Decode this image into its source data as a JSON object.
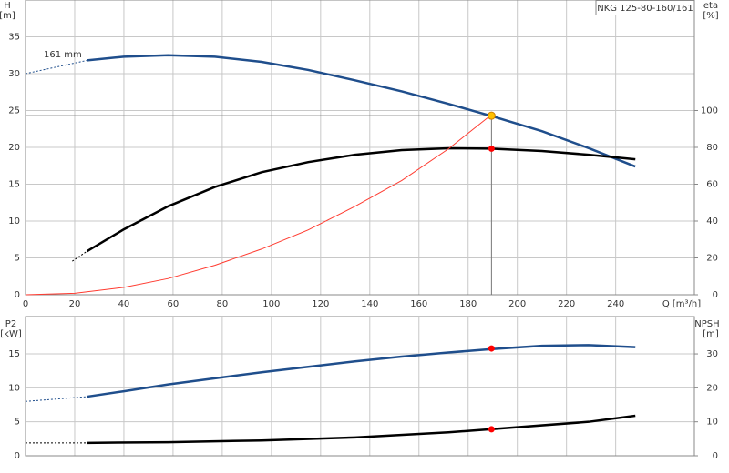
{
  "chart_data": [
    {
      "type": "line",
      "title": "NKG 125-80-160/161",
      "annotation": "161 mm",
      "y_label": "H",
      "y_unit": "[m]",
      "y2_label": "eta",
      "y2_unit": "[%]",
      "x_label": "Q [m³/h]",
      "xlim": [
        0,
        272
      ],
      "xticks": [
        0,
        20,
        40,
        60,
        80,
        100,
        120,
        140,
        160,
        180,
        200,
        220,
        240
      ],
      "ylim": [
        0,
        40
      ],
      "yticks": [
        0,
        5,
        10,
        15,
        20,
        25,
        30,
        35
      ],
      "y2lim": [
        0,
        160
      ],
      "y2ticks": [
        0,
        20,
        40,
        60,
        80,
        100
      ],
      "grid": true,
      "series": [
        {
          "color": "#1f4e8c",
          "dashed": true,
          "x": [
            0,
            25
          ],
          "values": [
            30,
            31.8
          ]
        },
        {
          "color": "#1f4e8c",
          "x": [
            25,
            40,
            58,
            77,
            96,
            115,
            134,
            153,
            172,
            189,
            210,
            229,
            248
          ],
          "values": [
            31.8,
            32.3,
            32.5,
            32.3,
            31.6,
            30.5,
            29.1,
            27.6,
            25.9,
            24.3,
            22.2,
            19.9,
            17.4
          ]
        },
        {
          "color": "#000000",
          "dashed": true,
          "axis": "y2",
          "x": [
            19,
            25
          ],
          "values": [
            18.2,
            23.6
          ]
        },
        {
          "color": "#000000",
          "axis": "y2",
          "x": [
            25,
            40,
            58,
            77,
            96,
            115,
            134,
            153,
            172,
            189,
            210,
            229,
            248
          ],
          "values": [
            23.6,
            35.5,
            48,
            58.5,
            66.5,
            72,
            76,
            78.5,
            79.5,
            79.3,
            78,
            76,
            73.5
          ]
        },
        {
          "color": "#ff3b30",
          "thin": true,
          "x": [
            0,
            20,
            40,
            58,
            77,
            96,
            115,
            134,
            153,
            172,
            189
          ],
          "values": [
            0,
            0.2,
            1,
            2.2,
            4,
            6.2,
            8.8,
            12,
            15.5,
            19.8,
            24.3
          ]
        }
      ],
      "points": [
        {
          "x": 189.5,
          "y": 24.3,
          "color": "#ffc000",
          "guides": true
        },
        {
          "x": 189.5,
          "y": 79.3,
          "color": "#ff0000",
          "axis": "y2"
        }
      ]
    },
    {
      "type": "line",
      "y_label": "P2",
      "y_unit": "[kW]",
      "y2_label": "NPSH",
      "y2_unit": "[m]",
      "xlim": [
        0,
        272
      ],
      "xticks": [
        0,
        20,
        40,
        60,
        80,
        100,
        120,
        140,
        160,
        180,
        200,
        220,
        240
      ],
      "ylim": [
        0,
        20.5
      ],
      "yticks": [
        0,
        5,
        10,
        15
      ],
      "y2lim": [
        0,
        41
      ],
      "y2ticks": [
        0,
        10,
        20,
        30
      ],
      "grid": true,
      "series": [
        {
          "color": "#1f4e8c",
          "dashed": true,
          "x": [
            0,
            25
          ],
          "values": [
            8.0,
            8.7
          ]
        },
        {
          "color": "#1f4e8c",
          "x": [
            25,
            40,
            58,
            77,
            96,
            115,
            134,
            153,
            172,
            189,
            210,
            229,
            248
          ],
          "values": [
            8.7,
            9.5,
            10.5,
            11.4,
            12.3,
            13.1,
            13.9,
            14.6,
            15.2,
            15.7,
            16.2,
            16.3,
            16.0
          ]
        },
        {
          "color": "#000000",
          "dashed": true,
          "axis": "y2",
          "x": [
            0,
            25
          ],
          "values": [
            3.8,
            3.8
          ]
        },
        {
          "color": "#000000",
          "axis": "y2",
          "x": [
            25,
            58,
            96,
            134,
            172,
            189,
            229,
            248
          ],
          "values": [
            3.8,
            4.0,
            4.5,
            5.4,
            6.9,
            7.8,
            10,
            11.8
          ]
        }
      ],
      "points": [
        {
          "x": 189.5,
          "y": 15.8,
          "color": "#ff0000"
        },
        {
          "x": 189.5,
          "y": 7.8,
          "color": "#ff0000",
          "axis": "y2"
        }
      ]
    }
  ]
}
